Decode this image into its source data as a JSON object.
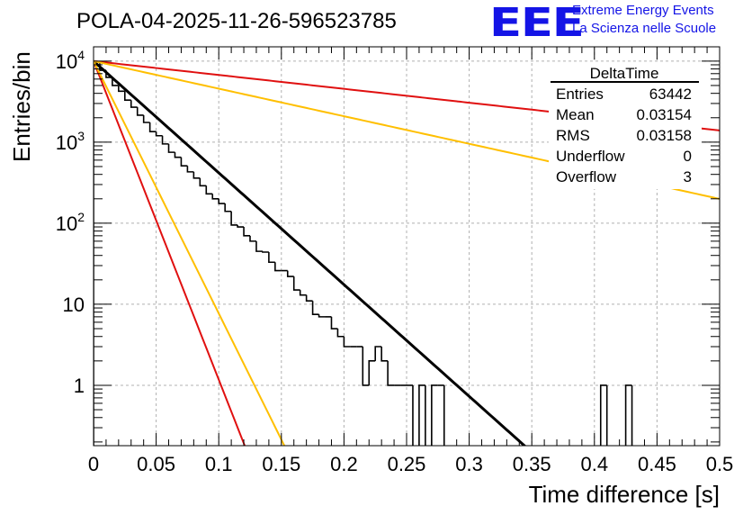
{
  "header": {
    "title": "POLA-04-2025-11-26-596523785",
    "logo_text": "EEE",
    "logo_line1": "Extreme Energy Events",
    "logo_line2": "La Scienza nelle Scuole"
  },
  "stats_box": {
    "name": "DeltaTime",
    "rows": [
      {
        "label": "Entries",
        "value": "63442"
      },
      {
        "label": "Mean",
        "value": "0.03154"
      },
      {
        "label": "RMS",
        "value": "0.03158"
      },
      {
        "label": "Underflow",
        "value": "0"
      },
      {
        "label": "Overflow",
        "value": "3"
      }
    ]
  },
  "colors": {
    "histogram": "#000000",
    "fit": "#000000",
    "red": "#e01010",
    "orange": "#ffbf00",
    "grid": "#b0b0b0",
    "logo": "#1414e6"
  },
  "chart_data": {
    "type": "histogram",
    "title": "POLA-04-2025-11-26-596523785",
    "xlabel": "Time difference [s]",
    "ylabel": "Entries/bin",
    "xlim": [
      0,
      0.5
    ],
    "ylim": [
      0.18,
      15000
    ],
    "yscale": "log",
    "grid": true,
    "x_ticks": [
      {
        "value": 0,
        "label": "0"
      },
      {
        "value": 0.05,
        "label": "0.05"
      },
      {
        "value": 0.1,
        "label": "0.1"
      },
      {
        "value": 0.15,
        "label": "0.15"
      },
      {
        "value": 0.2,
        "label": "0.2"
      },
      {
        "value": 0.25,
        "label": "0.25"
      },
      {
        "value": 0.3,
        "label": "0.3"
      },
      {
        "value": 0.35,
        "label": "0.35"
      },
      {
        "value": 0.4,
        "label": "0.4"
      },
      {
        "value": 0.45,
        "label": "0.45"
      },
      {
        "value": 0.5,
        "label": "0.5"
      }
    ],
    "y_ticks": [
      {
        "value": 1,
        "base": "1",
        "exp": ""
      },
      {
        "value": 10,
        "base": "10",
        "exp": ""
      },
      {
        "value": 100,
        "base": "10",
        "exp": "2"
      },
      {
        "value": 1000,
        "base": "10",
        "exp": "3"
      },
      {
        "value": 10000,
        "base": "10",
        "exp": "4"
      }
    ],
    "bin_width": 0.005,
    "bin_counts": [
      9800,
      7700,
      6300,
      5000,
      4250,
      3300,
      2700,
      2150,
      1750,
      1350,
      1200,
      950,
      750,
      650,
      510,
      430,
      360,
      290,
      230,
      200,
      175,
      140,
      95,
      90,
      70,
      60,
      45,
      44,
      33,
      26,
      26,
      22,
      15,
      13,
      11,
      7.5,
      7,
      7,
      5,
      4,
      3,
      3,
      3,
      1,
      2,
      3,
      2,
      1,
      1,
      1,
      1,
      0,
      1,
      0,
      1,
      1,
      0,
      0,
      0,
      0,
      0,
      0,
      0,
      0,
      0,
      0,
      0,
      0,
      0,
      0,
      0,
      0,
      0,
      0,
      0,
      0,
      0,
      0,
      0,
      0,
      0,
      1,
      0,
      0,
      0,
      1,
      0,
      0,
      0,
      0,
      0,
      0,
      0,
      0,
      0,
      0,
      0,
      0,
      0,
      0
    ],
    "curves": [
      {
        "name": "fit",
        "color": "#000000",
        "width": 3,
        "A": 10000,
        "tau": 0.0315
      },
      {
        "name": "red-slow",
        "color": "#e01010",
        "width": 2,
        "A": 10000,
        "tau": 0.2537
      },
      {
        "name": "orange-slow",
        "color": "#ffbf00",
        "width": 2,
        "A": 10000,
        "tau": 0.1277
      },
      {
        "name": "red-fast",
        "color": "#e01010",
        "width": 2,
        "A": 10000,
        "tau": 0.01105
      },
      {
        "name": "orange-fast",
        "color": "#ffbf00",
        "width": 2,
        "A": 10000,
        "tau": 0.01395
      }
    ]
  }
}
